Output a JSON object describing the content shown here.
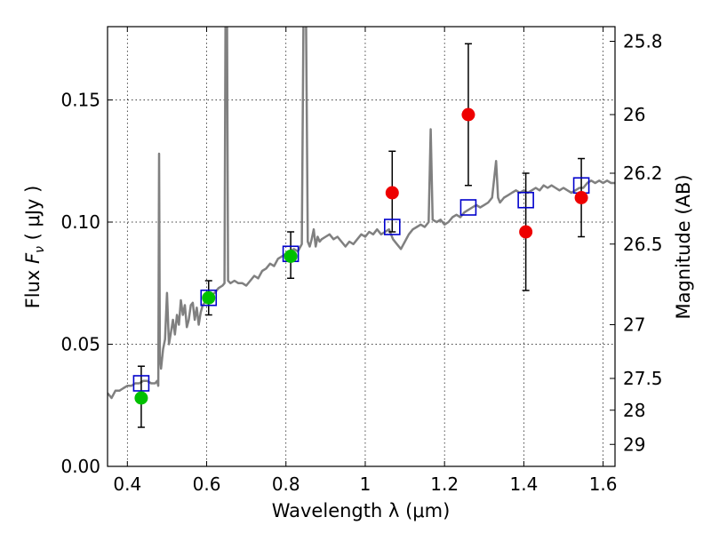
{
  "chart_data": {
    "type": "scatter",
    "title": "",
    "xlabel": "Wavelength  λ (μm)",
    "ylabel": "Flux  F_ν  ( μJy )",
    "ylabel_parts": {
      "prefix": "Flux  ",
      "symbol": "F",
      "subscript": "ν",
      "suffix": "  ( μJy )"
    },
    "y2label": "Magnitude (AB)",
    "xlim": [
      0.35,
      1.63
    ],
    "ylim": [
      0.0,
      0.18
    ],
    "grid": true,
    "x_ticks": [
      0.4,
      0.6,
      0.8,
      1.0,
      1.2,
      1.4,
      1.6
    ],
    "x_tick_labels": [
      "0.4",
      "0.6",
      "0.8",
      "1",
      "1.2",
      "1.4",
      "1.6"
    ],
    "y_ticks": [
      0.0,
      0.05,
      0.1,
      0.15
    ],
    "y_tick_labels": [
      "0.00",
      "0.05",
      "0.10",
      "0.15"
    ],
    "y2_ticks": [
      {
        "label": "25.8",
        "flux": 0.174
      },
      {
        "label": "26",
        "flux": 0.144
      },
      {
        "label": "26.2",
        "flux": 0.12
      },
      {
        "label": "26.5",
        "flux": 0.091
      },
      {
        "label": "27",
        "flux": 0.058
      },
      {
        "label": "27.5",
        "flux": 0.036
      },
      {
        "label": "28",
        "flux": 0.023
      },
      {
        "label": "29",
        "flux": 0.009
      }
    ],
    "series": [
      {
        "kind": "spectrum",
        "color": "#808080",
        "points": [
          [
            0.35,
            0.03
          ],
          [
            0.36,
            0.028
          ],
          [
            0.37,
            0.031
          ],
          [
            0.38,
            0.031
          ],
          [
            0.39,
            0.032
          ],
          [
            0.4,
            0.033
          ],
          [
            0.41,
            0.033
          ],
          [
            0.42,
            0.034
          ],
          [
            0.43,
            0.034
          ],
          [
            0.44,
            0.035
          ],
          [
            0.45,
            0.035
          ],
          [
            0.46,
            0.034
          ],
          [
            0.47,
            0.034
          ],
          [
            0.475,
            0.035
          ],
          [
            0.478,
            0.033
          ],
          [
            0.48,
            0.128
          ],
          [
            0.482,
            0.045
          ],
          [
            0.485,
            0.04
          ],
          [
            0.49,
            0.048
          ],
          [
            0.495,
            0.052
          ],
          [
            0.5,
            0.071
          ],
          [
            0.505,
            0.05
          ],
          [
            0.51,
            0.055
          ],
          [
            0.515,
            0.06
          ],
          [
            0.52,
            0.054
          ],
          [
            0.525,
            0.062
          ],
          [
            0.53,
            0.058
          ],
          [
            0.535,
            0.068
          ],
          [
            0.54,
            0.062
          ],
          [
            0.545,
            0.066
          ],
          [
            0.55,
            0.057
          ],
          [
            0.555,
            0.06
          ],
          [
            0.56,
            0.066
          ],
          [
            0.565,
            0.067
          ],
          [
            0.57,
            0.06
          ],
          [
            0.575,
            0.065
          ],
          [
            0.58,
            0.058
          ],
          [
            0.585,
            0.063
          ],
          [
            0.59,
            0.066
          ],
          [
            0.6,
            0.068
          ],
          [
            0.61,
            0.07
          ],
          [
            0.62,
            0.071
          ],
          [
            0.63,
            0.073
          ],
          [
            0.64,
            0.074
          ],
          [
            0.645,
            0.075
          ],
          [
            0.648,
            0.2
          ],
          [
            0.651,
            0.2
          ],
          [
            0.654,
            0.076
          ],
          [
            0.66,
            0.075
          ],
          [
            0.67,
            0.076
          ],
          [
            0.68,
            0.075
          ],
          [
            0.69,
            0.075
          ],
          [
            0.7,
            0.074
          ],
          [
            0.71,
            0.076
          ],
          [
            0.72,
            0.078
          ],
          [
            0.73,
            0.077
          ],
          [
            0.74,
            0.08
          ],
          [
            0.75,
            0.081
          ],
          [
            0.76,
            0.083
          ],
          [
            0.77,
            0.082
          ],
          [
            0.78,
            0.085
          ],
          [
            0.79,
            0.086
          ],
          [
            0.8,
            0.087
          ],
          [
            0.81,
            0.088
          ],
          [
            0.82,
            0.089
          ],
          [
            0.83,
            0.088
          ],
          [
            0.84,
            0.091
          ],
          [
            0.845,
            0.2
          ],
          [
            0.85,
            0.2
          ],
          [
            0.855,
            0.092
          ],
          [
            0.86,
            0.09
          ],
          [
            0.865,
            0.093
          ],
          [
            0.87,
            0.097
          ],
          [
            0.875,
            0.09
          ],
          [
            0.88,
            0.094
          ],
          [
            0.885,
            0.092
          ],
          [
            0.89,
            0.093
          ],
          [
            0.9,
            0.094
          ],
          [
            0.91,
            0.095
          ],
          [
            0.92,
            0.093
          ],
          [
            0.93,
            0.094
          ],
          [
            0.94,
            0.092
          ],
          [
            0.95,
            0.09
          ],
          [
            0.96,
            0.092
          ],
          [
            0.97,
            0.091
          ],
          [
            0.98,
            0.093
          ],
          [
            0.99,
            0.095
          ],
          [
            1.0,
            0.094
          ],
          [
            1.01,
            0.096
          ],
          [
            1.02,
            0.095
          ],
          [
            1.03,
            0.097
          ],
          [
            1.04,
            0.095
          ],
          [
            1.05,
            0.096
          ],
          [
            1.06,
            0.097
          ],
          [
            1.07,
            0.093
          ],
          [
            1.08,
            0.091
          ],
          [
            1.09,
            0.089
          ],
          [
            1.1,
            0.092
          ],
          [
            1.11,
            0.095
          ],
          [
            1.12,
            0.097
          ],
          [
            1.13,
            0.098
          ],
          [
            1.14,
            0.099
          ],
          [
            1.15,
            0.098
          ],
          [
            1.16,
            0.1
          ],
          [
            1.165,
            0.138
          ],
          [
            1.17,
            0.101
          ],
          [
            1.18,
            0.1
          ],
          [
            1.19,
            0.101
          ],
          [
            1.2,
            0.099
          ],
          [
            1.21,
            0.1
          ],
          [
            1.22,
            0.102
          ],
          [
            1.23,
            0.103
          ],
          [
            1.24,
            0.102
          ],
          [
            1.25,
            0.104
          ],
          [
            1.26,
            0.105
          ],
          [
            1.27,
            0.106
          ],
          [
            1.28,
            0.107
          ],
          [
            1.29,
            0.106
          ],
          [
            1.3,
            0.107
          ],
          [
            1.31,
            0.108
          ],
          [
            1.32,
            0.11
          ],
          [
            1.33,
            0.125
          ],
          [
            1.335,
            0.11
          ],
          [
            1.34,
            0.108
          ],
          [
            1.35,
            0.11
          ],
          [
            1.36,
            0.111
          ],
          [
            1.37,
            0.112
          ],
          [
            1.38,
            0.113
          ],
          [
            1.39,
            0.112
          ],
          [
            1.4,
            0.113
          ],
          [
            1.41,
            0.112
          ],
          [
            1.42,
            0.113
          ],
          [
            1.43,
            0.114
          ],
          [
            1.44,
            0.113
          ],
          [
            1.45,
            0.115
          ],
          [
            1.46,
            0.114
          ],
          [
            1.47,
            0.115
          ],
          [
            1.48,
            0.114
          ],
          [
            1.49,
            0.113
          ],
          [
            1.5,
            0.114
          ],
          [
            1.51,
            0.113
          ],
          [
            1.52,
            0.112
          ],
          [
            1.53,
            0.113
          ],
          [
            1.54,
            0.114
          ],
          [
            1.55,
            0.114
          ],
          [
            1.56,
            0.116
          ],
          [
            1.57,
            0.117
          ],
          [
            1.58,
            0.116
          ],
          [
            1.59,
            0.117
          ],
          [
            1.6,
            0.116
          ],
          [
            1.61,
            0.117
          ],
          [
            1.62,
            0.116
          ],
          [
            1.63,
            0.116
          ]
        ]
      },
      {
        "kind": "model-photometry",
        "marker": "square",
        "color": "#0000cc",
        "points": [
          [
            0.435,
            0.034
          ],
          [
            0.605,
            0.069
          ],
          [
            0.812,
            0.087
          ],
          [
            1.068,
            0.098
          ],
          [
            1.26,
            0.106
          ],
          [
            1.405,
            0.109
          ],
          [
            1.545,
            0.115
          ]
        ]
      },
      {
        "kind": "measured-photometry",
        "marker": "circle",
        "color": "#00c000",
        "points": [
          {
            "x": 0.435,
            "y": 0.028,
            "lo": 0.016,
            "hi": 0.041
          },
          {
            "x": 0.605,
            "y": 0.069,
            "lo": 0.062,
            "hi": 0.076
          },
          {
            "x": 0.812,
            "y": 0.086,
            "lo": 0.077,
            "hi": 0.096
          }
        ]
      },
      {
        "kind": "measured-photometry",
        "marker": "circle",
        "color": "#ee0000",
        "points": [
          {
            "x": 1.068,
            "y": 0.112,
            "lo": 0.096,
            "hi": 0.129
          },
          {
            "x": 1.26,
            "y": 0.144,
            "lo": 0.115,
            "hi": 0.173
          },
          {
            "x": 1.405,
            "y": 0.096,
            "lo": 0.072,
            "hi": 0.12
          },
          {
            "x": 1.545,
            "y": 0.11,
            "lo": 0.094,
            "hi": 0.126
          }
        ]
      }
    ]
  }
}
